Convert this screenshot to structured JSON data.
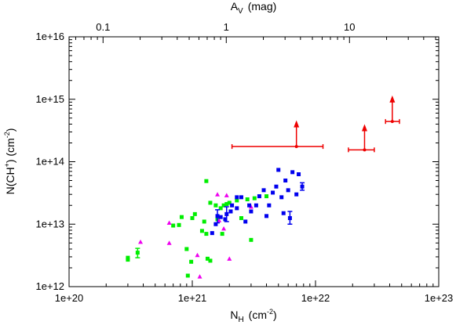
{
  "chart_data": {
    "type": "scatter",
    "xscale": "log",
    "yscale": "log",
    "xlim": [
      1e+20,
      1e+23
    ],
    "ylim": [
      1000000000000.0,
      1e+16
    ],
    "xticks": [
      "1e+20",
      "1e+21",
      "1e+22",
      "1e+23"
    ],
    "yticks": [
      "1e+12",
      "1e+13",
      "1e+14",
      "1e+15",
      "1e+16"
    ],
    "top_xticks": [
      "0.1",
      "1",
      "10"
    ],
    "top_xtick_values": [
      0.1,
      1,
      10
    ],
    "av_per_nh": 5.3e-22,
    "xlabel": {
      "main": "N",
      "sub": "H",
      "unit_pre": "(cm",
      "unit_sup": "-2",
      "unit_post": ")"
    },
    "ylabel": {
      "main": "N(CH",
      "sup": "+",
      "unit_pre": ") (cm",
      "unit_sup": "-2",
      "unit_post": ")"
    },
    "top_xlabel": {
      "main": "A",
      "sub": "V",
      "unit": "(mag)"
    },
    "grid": false,
    "series": [
      {
        "marker": "square",
        "color": "#00ee00",
        "points": [
          {
            "x": 3e+20,
            "y": 2700000000000.0
          },
          {
            "x": 3e+20,
            "y": 2900000000000.0
          },
          {
            "x": 3.6e+20,
            "y": 3500000000000.0,
            "yerr": [
              2900000000000.0,
              4100000000000.0
            ]
          },
          {
            "x": 7e+20,
            "y": 9500000000000.0
          },
          {
            "x": 7.8e+20,
            "y": 9700000000000.0
          },
          {
            "x": 8.2e+20,
            "y": 13000000000000.0
          },
          {
            "x": 9e+20,
            "y": 4000000000000.0
          },
          {
            "x": 9.2e+20,
            "y": 1500000000000.0
          },
          {
            "x": 9.8e+20,
            "y": 2500000000000.0
          },
          {
            "x": 1e+21,
            "y": 12500000000000.0
          },
          {
            "x": 1.05e+21,
            "y": 14500000000000.0
          },
          {
            "x": 1.2e+21,
            "y": 7800000000000.0
          },
          {
            "x": 1.25e+21,
            "y": 11000000000000.0
          },
          {
            "x": 1.3e+21,
            "y": 49000000000000.0
          },
          {
            "x": 1.3e+21,
            "y": 7000000000000.0
          },
          {
            "x": 1.33e+21,
            "y": 2800000000000.0
          },
          {
            "x": 1.4e+21,
            "y": 2600000000000.0
          },
          {
            "x": 1.4e+21,
            "y": 22000000000000.0
          },
          {
            "x": 1.55e+21,
            "y": 20000000000000.0
          },
          {
            "x": 1.6e+21,
            "y": 12000000000000.0
          },
          {
            "x": 1.7e+21,
            "y": 18000000000000.0
          },
          {
            "x": 1.75e+21,
            "y": 7000000000000.0
          },
          {
            "x": 1.8e+21,
            "y": 20000000000000.0
          },
          {
            "x": 1.9e+21,
            "y": 21000000000000.0
          },
          {
            "x": 2e+21,
            "y": 22000000000000.0
          },
          {
            "x": 2.3e+21,
            "y": 24000000000000.0
          },
          {
            "x": 2.5e+21,
            "y": 12500000000000.0
          },
          {
            "x": 2.8e+21,
            "y": 25000000000000.0
          },
          {
            "x": 3e+21,
            "y": 5600000000000.0
          },
          {
            "x": 3.2e+21,
            "y": 26000000000000.0
          },
          {
            "x": 4e+21,
            "y": 28000000000000.0
          }
        ]
      },
      {
        "marker": "triangle",
        "color": "#ee00ee",
        "points": [
          {
            "x": 3.8e+20,
            "y": 5200000000000.0
          },
          {
            "x": 6.5e+20,
            "y": 10500000000000.0
          },
          {
            "x": 6.5e+20,
            "y": 5000000000000.0
          },
          {
            "x": 1.1e+21,
            "y": 3200000000000.0
          },
          {
            "x": 1.15e+21,
            "y": 1450000000000.0
          },
          {
            "x": 1.6e+21,
            "y": 30000000000000.0
          },
          {
            "x": 1.65e+21,
            "y": 11500000000000.0
          },
          {
            "x": 1.8e+21,
            "y": 8500000000000.0
          },
          {
            "x": 1.9e+21,
            "y": 29000000000000.0
          },
          {
            "x": 2e+21,
            "y": 2800000000000.0
          },
          {
            "x": 3e+21,
            "y": 19000000000000.0
          }
        ]
      },
      {
        "marker": "square",
        "color": "#0000ee",
        "points": [
          {
            "x": 1.45e+21,
            "y": 7200000000000.0
          },
          {
            "x": 1.55e+21,
            "y": 10000000000000.0
          },
          {
            "x": 1.6e+21,
            "y": 13500000000000.0,
            "yerr": [
              10500000000000.0,
              17000000000000.0
            ]
          },
          {
            "x": 1.7e+21,
            "y": 13000000000000.0
          },
          {
            "x": 1.85e+21,
            "y": 12000000000000.0
          },
          {
            "x": 1.9e+21,
            "y": 14500000000000.0,
            "yerr": [
              11000000000000.0,
              19000000000000.0
            ]
          },
          {
            "x": 2.05e+21,
            "y": 16000000000000.0
          },
          {
            "x": 2.1e+21,
            "y": 20000000000000.0
          },
          {
            "x": 2.3e+21,
            "y": 18000000000000.0
          },
          {
            "x": 2.3e+21,
            "y": 27000000000000.0
          },
          {
            "x": 2.5e+21,
            "y": 27000000000000.0
          },
          {
            "x": 2.7e+21,
            "y": 11000000000000.0
          },
          {
            "x": 2.9e+21,
            "y": 20000000000000.0
          },
          {
            "x": 3e+21,
            "y": 16000000000000.0
          },
          {
            "x": 3.3e+21,
            "y": 20000000000000.0
          },
          {
            "x": 3.5e+21,
            "y": 28000000000000.0
          },
          {
            "x": 3.8e+21,
            "y": 35000000000000.0
          },
          {
            "x": 4e+21,
            "y": 13500000000000.0
          },
          {
            "x": 4.2e+21,
            "y": 20000000000000.0
          },
          {
            "x": 4.5e+21,
            "y": 32000000000000.0
          },
          {
            "x": 4.8e+21,
            "y": 40000000000000.0
          },
          {
            "x": 5e+21,
            "y": 74000000000000.0
          },
          {
            "x": 5.3e+21,
            "y": 27000000000000.0
          },
          {
            "x": 5.5e+21,
            "y": 15000000000000.0
          },
          {
            "x": 5.7e+21,
            "y": 50000000000000.0
          },
          {
            "x": 6e+21,
            "y": 35000000000000.0
          },
          {
            "x": 6.2e+21,
            "y": 12500000000000.0,
            "yerr": [
              10000000000000.0,
              16000000000000.0
            ]
          },
          {
            "x": 6.5e+21,
            "y": 68000000000000.0
          },
          {
            "x": 7e+21,
            "y": 30000000000000.0
          },
          {
            "x": 7.3e+21,
            "y": 63000000000000.0
          },
          {
            "x": 7.8e+21,
            "y": 40000000000000.0,
            "yerr": [
              35000000000000.0,
              46000000000000.0
            ]
          }
        ]
      },
      {
        "marker": "point-lower-limit",
        "color": "#ee0000",
        "points": [
          {
            "x": 7e+21,
            "y": 175000000000000.0,
            "xerr": [
              2.1e+21,
              1.15e+22
            ],
            "arrow_to": 460000000000000.0
          },
          {
            "x": 2.5e+22,
            "y": 155000000000000.0,
            "xerr": [
              1.85e+22,
              3e+22
            ],
            "arrow_to": 400000000000000.0
          },
          {
            "x": 4.2e+22,
            "y": 440000000000000.0,
            "xerr": [
              3.7e+22,
              4.8e+22
            ],
            "arrow_to": 1150000000000000.0
          }
        ]
      }
    ]
  }
}
